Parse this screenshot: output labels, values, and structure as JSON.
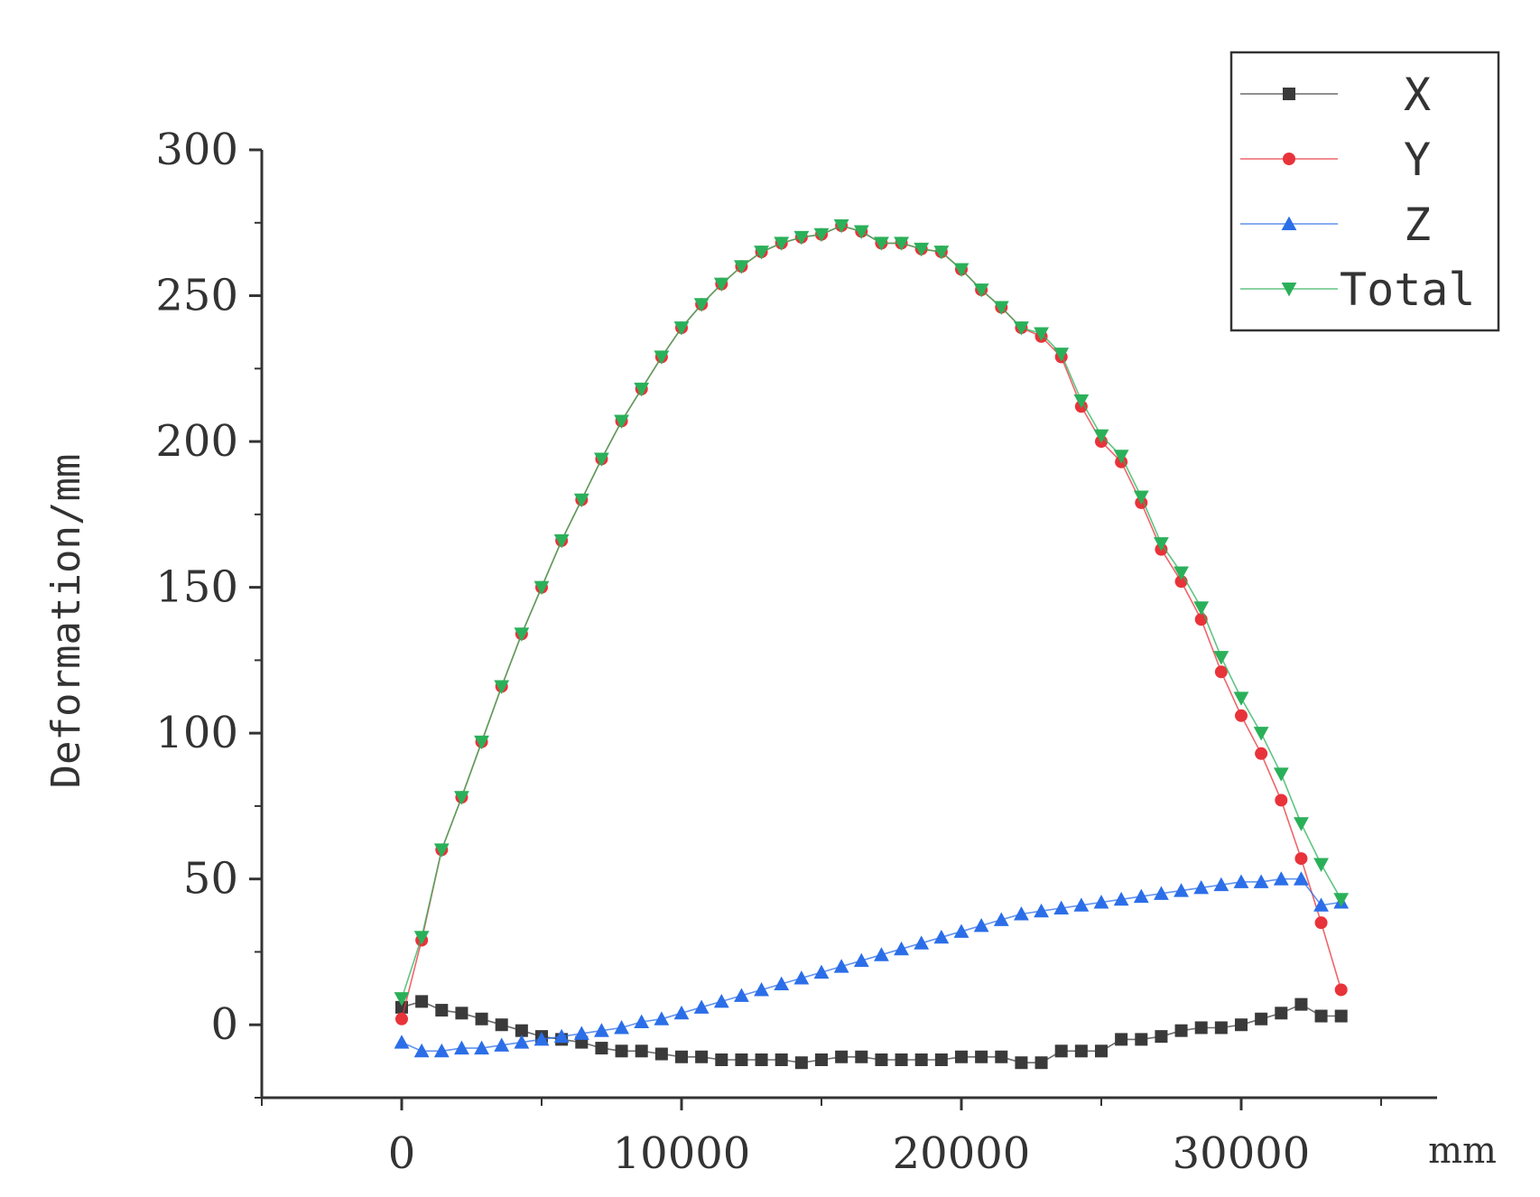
{
  "chart_data": {
    "type": "line",
    "title": "",
    "xlabel": "mm",
    "ylabel": "Deformation/mm",
    "xlim": [
      -5000,
      37000
    ],
    "ylim": [
      -25,
      300
    ],
    "x_ticks": [
      0,
      10000,
      20000,
      30000
    ],
    "y_ticks": [
      0,
      50,
      100,
      150,
      200,
      250,
      300
    ],
    "legend_position": "top-right",
    "grid": false,
    "x": [
      0,
      714,
      1429,
      2143,
      2857,
      3571,
      4286,
      5000,
      5714,
      6429,
      7143,
      7857,
      8571,
      9286,
      10000,
      10714,
      11429,
      12143,
      12857,
      13571,
      14286,
      15000,
      15714,
      16429,
      17143,
      17857,
      18571,
      19286,
      20000,
      20714,
      21429,
      22143,
      22857,
      23571,
      24286,
      25000,
      25714,
      26429,
      27143,
      27857,
      28571,
      29286,
      30000,
      30714,
      31429,
      32143,
      32857,
      33571
    ],
    "series": [
      {
        "name": "X",
        "color": "#3a3a3a",
        "marker": "square",
        "values": [
          6,
          8,
          5,
          4,
          2,
          0,
          -2,
          -4,
          -5,
          -6,
          -8,
          -9,
          -9,
          -10,
          -11,
          -11,
          -12,
          -12,
          -12,
          -12,
          -13,
          -12,
          -11,
          -11,
          -12,
          -12,
          -12,
          -12,
          -11,
          -11,
          -11,
          -13,
          -13,
          -9,
          -9,
          -9,
          -5,
          -5,
          -4,
          -2,
          -1,
          -1,
          0,
          2,
          4,
          7,
          3,
          3
        ]
      },
      {
        "name": "Y",
        "color": "#e8333a",
        "marker": "circle",
        "values": [
          2,
          29,
          60,
          78,
          97,
          116,
          134,
          150,
          166,
          180,
          194,
          207,
          218,
          229,
          239,
          247,
          254,
          260,
          265,
          268,
          270,
          271,
          274,
          272,
          268,
          268,
          266,
          265,
          259,
          252,
          246,
          239,
          236,
          229,
          212,
          200,
          193,
          179,
          163,
          152,
          139,
          121,
          106,
          93,
          77,
          57,
          35,
          12
        ]
      },
      {
        "name": "Z",
        "color": "#2b6ee8",
        "marker": "triangle-up",
        "values": [
          -6,
          -9,
          -9,
          -8,
          -8,
          -7,
          -6,
          -5,
          -4,
          -3,
          -2,
          -1,
          1,
          2,
          4,
          6,
          8,
          10,
          12,
          14,
          16,
          18,
          20,
          22,
          24,
          26,
          28,
          30,
          32,
          34,
          36,
          38,
          39,
          40,
          41,
          42,
          43,
          44,
          45,
          46,
          47,
          48,
          49,
          49,
          50,
          50,
          41,
          42
        ]
      },
      {
        "name": "Total",
        "color": "#2bb05a",
        "marker": "triangle-down",
        "values": [
          9,
          30,
          60,
          78,
          97,
          116,
          134,
          150,
          166,
          180,
          194,
          207,
          218,
          229,
          239,
          247,
          254,
          260,
          265,
          268,
          270,
          271,
          274,
          272,
          268,
          268,
          266,
          265,
          259,
          252,
          246,
          239,
          237,
          230,
          214,
          202,
          195,
          181,
          165,
          155,
          143,
          126,
          112,
          100,
          86,
          69,
          55,
          43
        ]
      }
    ]
  }
}
